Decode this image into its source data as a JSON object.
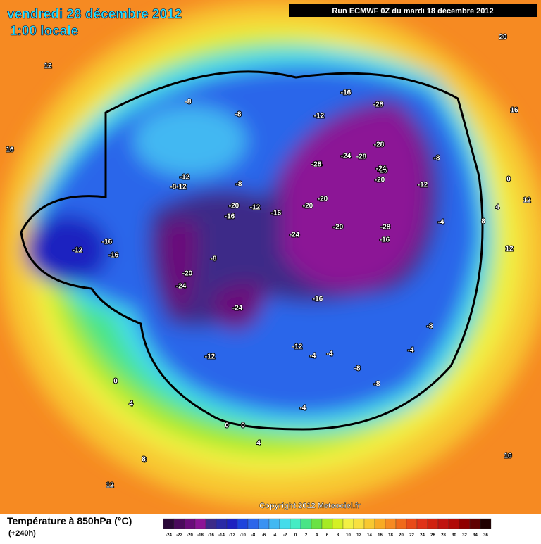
{
  "header": {
    "date": "vendredi 28 décembre 2012",
    "time": "1:00 locale",
    "run": "Run ECMWF 0Z du mardi 18 décembre 2012"
  },
  "map": {
    "labels": [
      "-28",
      "-28",
      "-24",
      "-28",
      "-24",
      "-20",
      "-28",
      "-24",
      "-20",
      "-20",
      "-20",
      "-24",
      "-20",
      "-28",
      "-16",
      "-12",
      "-20",
      "-16",
      "-12",
      "-16",
      "-20",
      "-24",
      "-24",
      "-16",
      "-12",
      "-8",
      "-8",
      "-12",
      "-8-12",
      "-8",
      "-16",
      "-12",
      "-16",
      "-8",
      "-12",
      "-8",
      "-4",
      "-4",
      "-8",
      "-8",
      "-4",
      "-4",
      "-12",
      "-16",
      "-8",
      "-4",
      "0",
      "0",
      "4",
      "8",
      "12",
      "16",
      "12",
      "0",
      "4",
      "8",
      "12",
      "16",
      "12",
      "20",
      "16",
      "0",
      "4",
      "8"
    ],
    "copyright": "Copyright 2012 Meteociel.fr"
  },
  "footer": {
    "title": "Température à 850hPa (°C)",
    "lead": "(+240h)",
    "scale": {
      "labels": [
        "-24",
        "-22",
        "-20",
        "-18",
        "-16",
        "-14",
        "-12",
        "-10",
        "-8",
        "-6",
        "-4",
        "-2",
        "0",
        "2",
        "4",
        "6",
        "8",
        "10",
        "12",
        "14",
        "16",
        "18",
        "20",
        "22",
        "24",
        "26",
        "28",
        "30",
        "32",
        "34",
        "36"
      ],
      "colors": [
        "#2a0838",
        "#4a0a5c",
        "#6a0c7a",
        "#8c1496",
        "#3c2a88",
        "#2a2aa6",
        "#1e22c0",
        "#1e44dc",
        "#2c66ea",
        "#3a92f2",
        "#42b8f2",
        "#44dcea",
        "#44ecc4",
        "#48e486",
        "#6ae244",
        "#a6ea24",
        "#d4f024",
        "#f2f044",
        "#f8e040",
        "#f8c830",
        "#f8aa24",
        "#f68a22",
        "#f06a1a",
        "#e84a18",
        "#e03218",
        "#d02210",
        "#c01410",
        "#b00a08",
        "#900000",
        "#600000",
        "#200000"
      ]
    }
  }
}
